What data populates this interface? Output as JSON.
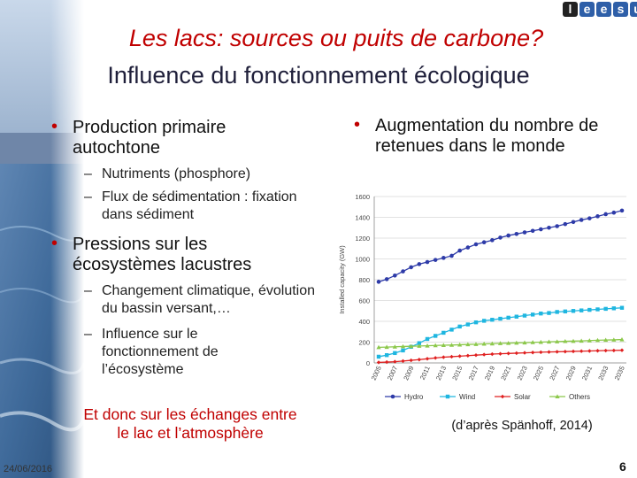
{
  "header": {
    "title": "Les lacs: sources ou  puits de carbone?",
    "subtitle": "Influence du fonctionnement écologique",
    "logo_letters": [
      "l",
      "e",
      "e",
      "s",
      "u"
    ],
    "logo_colors": [
      "#222222",
      "#2e5fa8",
      "#2e5fa8",
      "#2e5fa8",
      "#2e5fa8"
    ]
  },
  "left": {
    "bullet1": "Production primaire autochtone",
    "sub1": [
      "Nutriments (phosphore)",
      "Flux de sédimentation : fixation dans sédiment"
    ],
    "bullet2": "Pressions sur les écosystèmes lacustres",
    "sub2": [
      "Changement climatique, évolution du bassin versant,…",
      "Influence sur le fonctionnement de l’écosystème"
    ],
    "conclusion": "Et donc sur les échanges entre le lac et l’atmosphère"
  },
  "right": {
    "bullet": "Augmentation du nombre de retenues dans le monde",
    "source": "(d’après Spänhoff, 2014)"
  },
  "footer": {
    "date": "24/06/2016",
    "page": "6"
  },
  "colors": {
    "accent": "#c00000",
    "hydro": "#2e3ba8",
    "wind": "#1fb6e0",
    "solar": "#e02020",
    "others": "#8cc84b"
  },
  "chart_data": {
    "type": "line",
    "ylabel": "Installed capacity (GW)",
    "ylim": [
      0,
      1600
    ],
    "yticks": [
      0,
      200,
      400,
      600,
      800,
      1000,
      1200,
      1400,
      1600
    ],
    "x": [
      2005,
      2006,
      2007,
      2008,
      2009,
      2010,
      2011,
      2012,
      2013,
      2014,
      2015,
      2016,
      2017,
      2018,
      2019,
      2020,
      2021,
      2022,
      2023,
      2024,
      2025,
      2026,
      2027,
      2028,
      2029,
      2030,
      2031,
      2032,
      2033,
      2034,
      2035
    ],
    "xticks": [
      "2005",
      "2007",
      "2009",
      "2011",
      "2013",
      "2015",
      "2017",
      "2019",
      "2021",
      "2023",
      "2025",
      "2027",
      "2029",
      "2031",
      "2033",
      "2035"
    ],
    "grid": true,
    "legend_position": "bottom",
    "series": [
      {
        "name": "Hydro",
        "color": "#2e3ba8",
        "marker": "circle",
        "values": [
          780,
          805,
          840,
          880,
          920,
          950,
          970,
          990,
          1010,
          1030,
          1080,
          1110,
          1140,
          1160,
          1180,
          1205,
          1225,
          1240,
          1255,
          1270,
          1285,
          1300,
          1315,
          1335,
          1355,
          1375,
          1390,
          1410,
          1430,
          1445,
          1465
        ]
      },
      {
        "name": "Wind",
        "color": "#1fb6e0",
        "marker": "square",
        "values": [
          60,
          75,
          95,
          120,
          155,
          190,
          230,
          260,
          290,
          320,
          350,
          370,
          390,
          405,
          415,
          425,
          435,
          445,
          455,
          465,
          475,
          480,
          490,
          495,
          500,
          505,
          510,
          515,
          520,
          525,
          530
        ]
      },
      {
        "name": "Solar",
        "color": "#e02020",
        "marker": "diamond",
        "values": [
          5,
          8,
          12,
          18,
          25,
          32,
          40,
          48,
          55,
          60,
          65,
          70,
          75,
          80,
          85,
          88,
          91,
          94,
          97,
          100,
          103,
          105,
          107,
          109,
          111,
          113,
          115,
          117,
          119,
          120,
          122
        ]
      },
      {
        "name": "Others",
        "color": "#8cc84b",
        "marker": "triangle",
        "values": [
          150,
          152,
          155,
          158,
          160,
          163,
          165,
          168,
          170,
          172,
          175,
          178,
          180,
          183,
          185,
          188,
          190,
          193,
          195,
          198,
          200,
          203,
          205,
          208,
          210,
          212,
          215,
          218,
          220,
          222,
          225
        ]
      }
    ]
  }
}
